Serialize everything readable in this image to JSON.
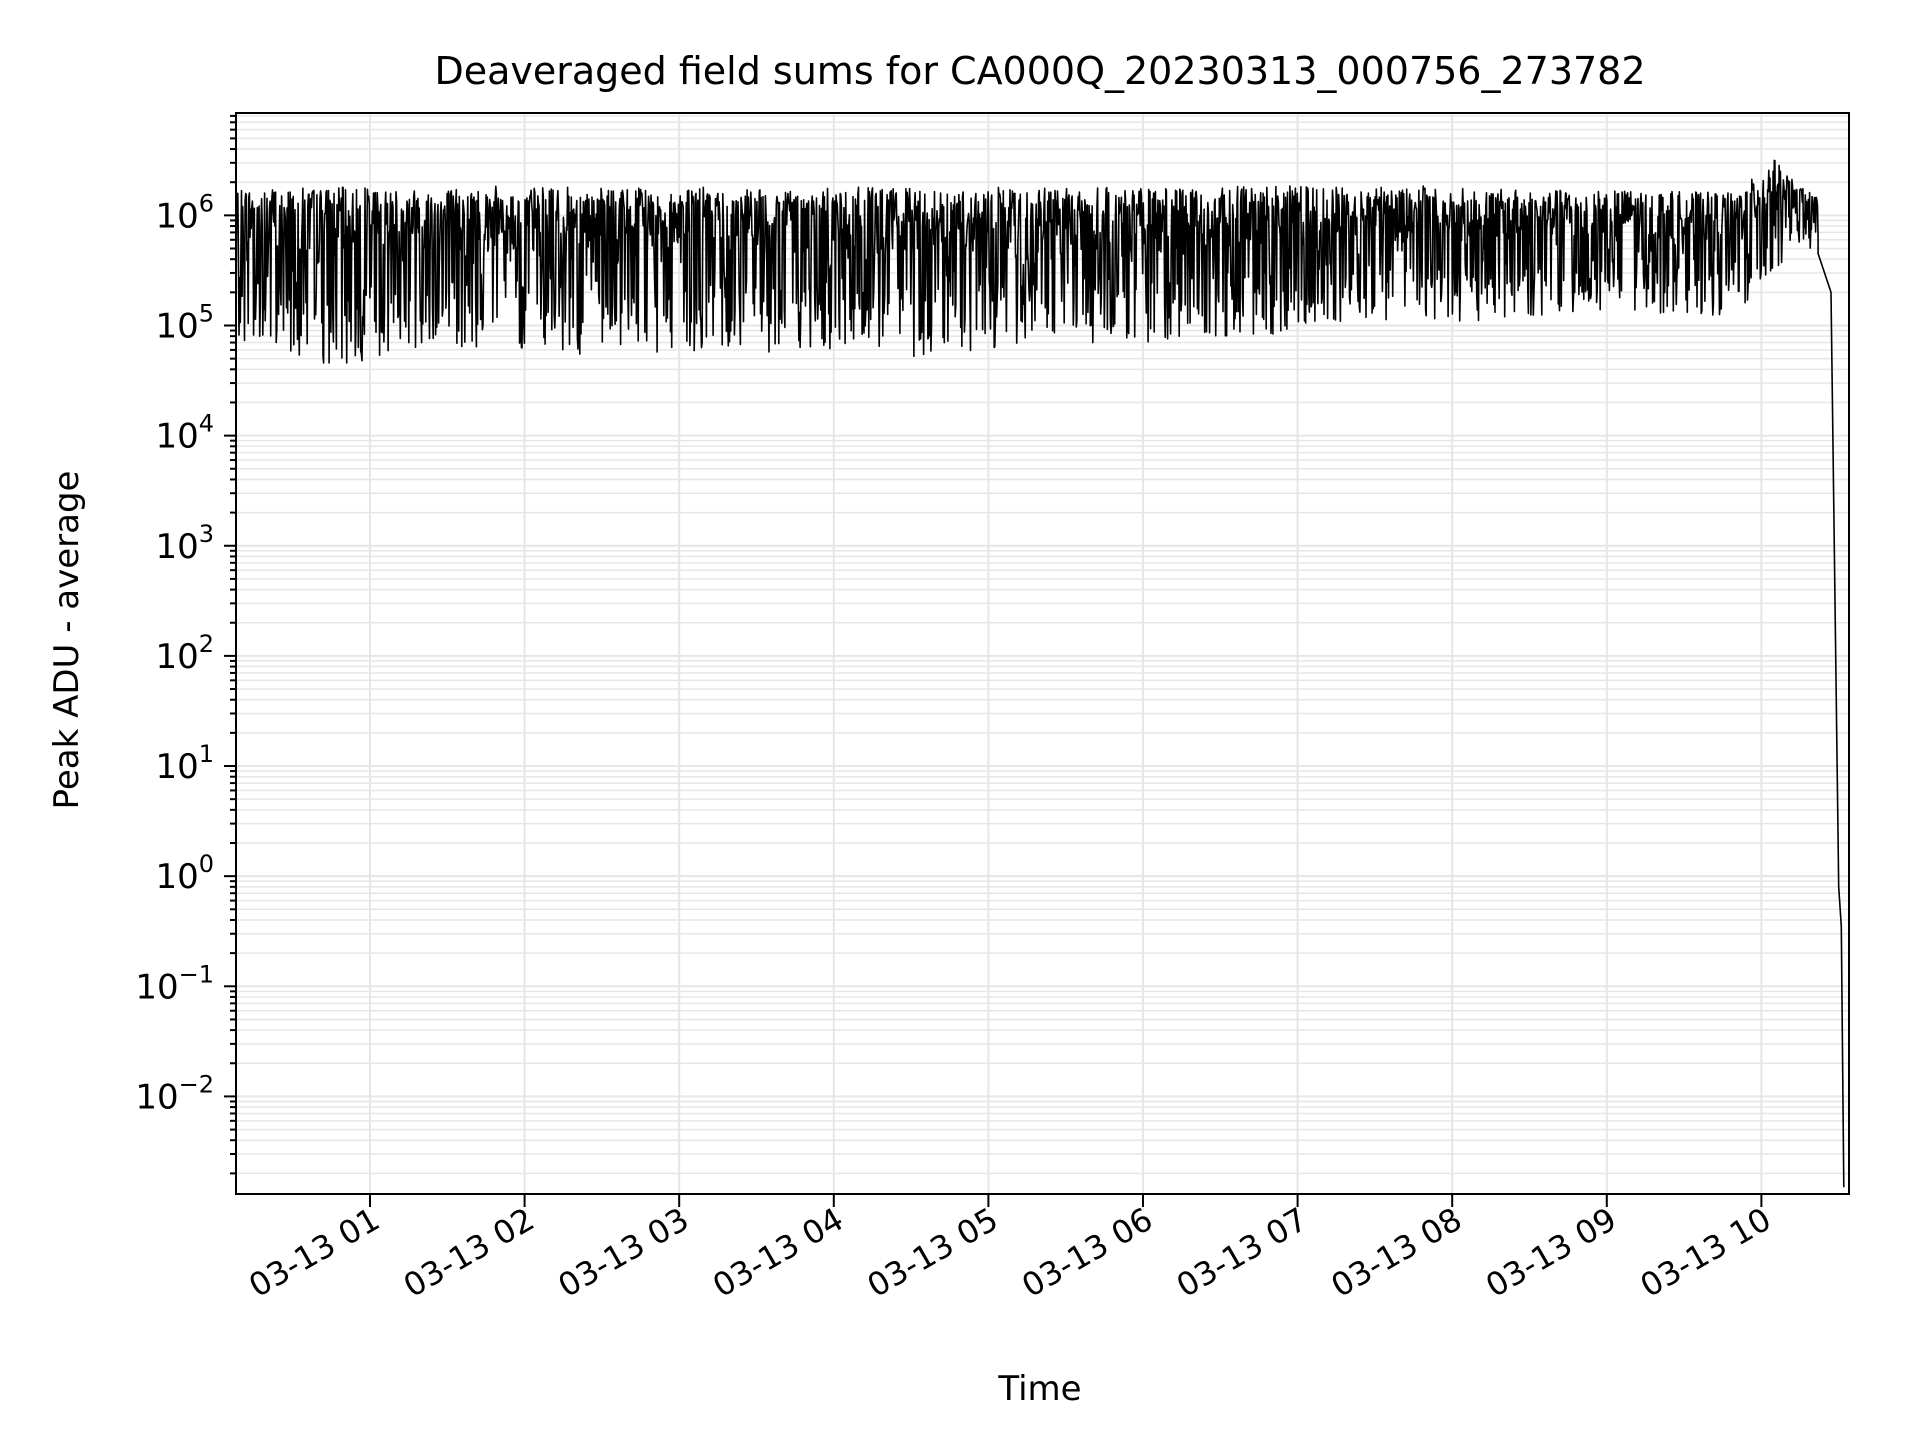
{
  "chart_data": {
    "type": "line",
    "title": "Deaveraged field sums for CA000Q_20230313_000756_273782",
    "xlabel": "Time",
    "ylabel": "Peak ADU - average",
    "yscale": "log",
    "grid": true,
    "legend": "none",
    "line_color": "#000000",
    "grid_color": "#e6e6e6",
    "xlim": [
      "2023-03-13 00:08",
      "2023-03-13 10:34"
    ],
    "ylim": [
      0.0013,
      8500000
    ],
    "x_ticks": [
      {
        "value": "2023-03-13 01:00",
        "label": "03-13 01"
      },
      {
        "value": "2023-03-13 02:00",
        "label": "03-13 02"
      },
      {
        "value": "2023-03-13 03:00",
        "label": "03-13 03"
      },
      {
        "value": "2023-03-13 04:00",
        "label": "03-13 04"
      },
      {
        "value": "2023-03-13 05:00",
        "label": "03-13 05"
      },
      {
        "value": "2023-03-13 06:00",
        "label": "03-13 06"
      },
      {
        "value": "2023-03-13 07:00",
        "label": "03-13 07"
      },
      {
        "value": "2023-03-13 08:00",
        "label": "03-13 08"
      },
      {
        "value": "2023-03-13 09:00",
        "label": "03-13 09"
      },
      {
        "value": "2023-03-13 10:00",
        "label": "03-13 10"
      }
    ],
    "y_ticks": [
      {
        "value": 0.01,
        "base": "10",
        "exp": "−2"
      },
      {
        "value": 0.1,
        "base": "10",
        "exp": "−1"
      },
      {
        "value": 1,
        "base": "10",
        "exp": "0"
      },
      {
        "value": 10,
        "base": "10",
        "exp": "1"
      },
      {
        "value": 100,
        "base": "10",
        "exp": "2"
      },
      {
        "value": 1000,
        "base": "10",
        "exp": "3"
      },
      {
        "value": 10000,
        "base": "10",
        "exp": "4"
      },
      {
        "value": 100000,
        "base": "10",
        "exp": "5"
      },
      {
        "value": 1000000,
        "base": "10",
        "exp": "6"
      }
    ],
    "series": [
      {
        "x": [
          "2023-03-13 00:08",
          "2023-03-13 00:30",
          "2023-03-13 00:50",
          "2023-03-13 01:10",
          "2023-03-13 01:30",
          "2023-03-13 01:50",
          "2023-03-13 02:10",
          "2023-03-13 02:30",
          "2023-03-13 02:50",
          "2023-03-13 03:10",
          "2023-03-13 03:30",
          "2023-03-13 03:50",
          "2023-03-13 04:10",
          "2023-03-13 04:30",
          "2023-03-13 04:50",
          "2023-03-13 05:10",
          "2023-03-13 05:30",
          "2023-03-13 05:50",
          "2023-03-13 06:10",
          "2023-03-13 06:30",
          "2023-03-13 06:50",
          "2023-03-13 07:10",
          "2023-03-13 07:30",
          "2023-03-13 07:50",
          "2023-03-13 08:10",
          "2023-03-13 08:30",
          "2023-03-13 08:50",
          "2023-03-13 09:10",
          "2023-03-13 09:30",
          "2023-03-13 09:50",
          "2023-03-13 10:05",
          "2023-03-13 10:15",
          "2023-03-13 10:22",
          "2023-03-13 10:27",
          "2023-03-13 10:30",
          "2023-03-13 10:31",
          "2023-03-13 10:32"
        ],
        "low": [
          60000,
          50000,
          42000,
          60000,
          55000,
          58000,
          55000,
          55000,
          55000,
          60000,
          55000,
          58000,
          60000,
          50000,
          55000,
          60000,
          60000,
          70000,
          70000,
          75000,
          80000,
          100000,
          110000,
          110000,
          110000,
          120000,
          120000,
          125000,
          130000,
          120000,
          280000,
          500000,
          400000,
          null,
          null,
          null,
          null
        ],
        "high": [
          1800000,
          1800000,
          1800000,
          1750000,
          1800000,
          1850000,
          1800000,
          1800000,
          1800000,
          1800000,
          1700000,
          1750000,
          1800000,
          1750000,
          1700000,
          1850000,
          1750000,
          1800000,
          1750000,
          1800000,
          1900000,
          1800000,
          1800000,
          1850000,
          1750000,
          1700000,
          1700000,
          1700000,
          1650000,
          1600000,
          3200000,
          1800000,
          1500000,
          null,
          null,
          null,
          null
        ],
        "tail": [
          null,
          null,
          null,
          null,
          null,
          null,
          null,
          null,
          null,
          null,
          null,
          null,
          null,
          null,
          null,
          null,
          null,
          null,
          null,
          null,
          null,
          null,
          null,
          null,
          null,
          null,
          null,
          null,
          null,
          null,
          null,
          null,
          450000,
          200000,
          0.8,
          0.35,
          0.0015
        ]
      }
    ]
  }
}
